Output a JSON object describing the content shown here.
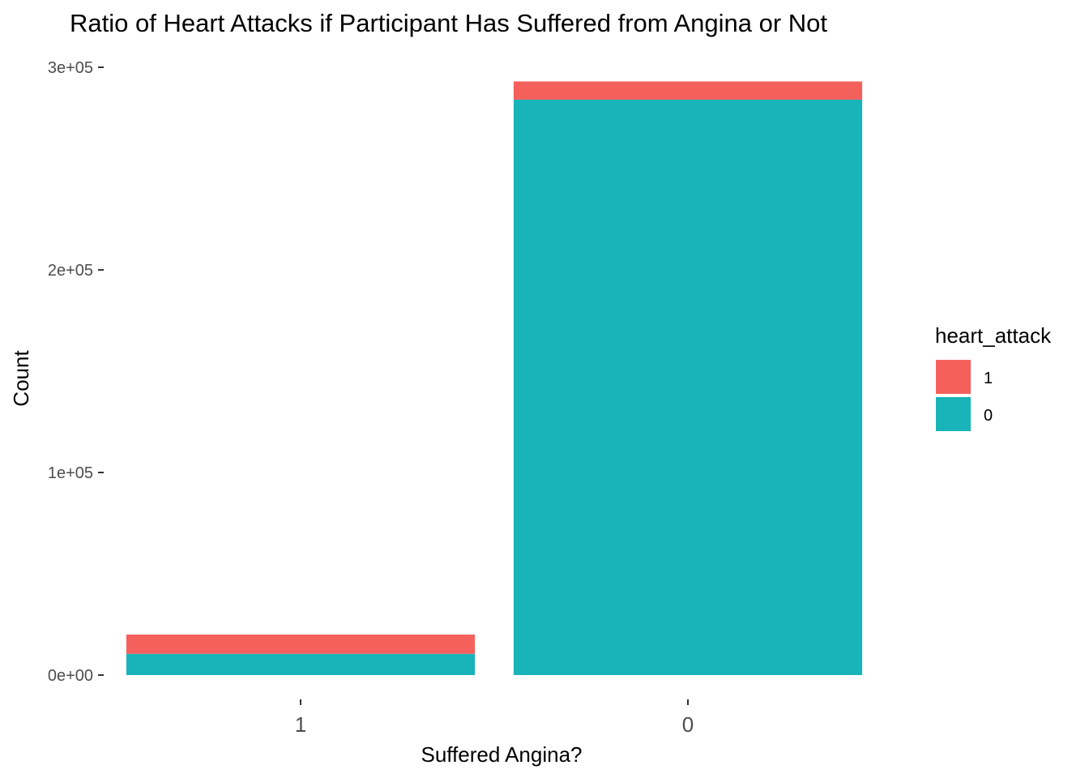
{
  "chart_data": {
    "type": "bar",
    "stacked": true,
    "title": "Ratio of Heart Attacks if Participant Has Suffered from Angina or Not",
    "xlabel": "Suffered Angina?",
    "ylabel": "Count",
    "categories": [
      "1",
      "0"
    ],
    "series": [
      {
        "name": "0",
        "color": "#19B4B9",
        "values": [
          10500,
          284000
        ]
      },
      {
        "name": "1",
        "color": "#F4615D",
        "values": [
          9500,
          9000
        ]
      }
    ],
    "ylim": [
      0,
      300000
    ],
    "y_ticks": [
      {
        "value": 0,
        "label": "0e+00"
      },
      {
        "value": 100000,
        "label": "1e+05"
      },
      {
        "value": 200000,
        "label": "2e+05"
      },
      {
        "value": 300000,
        "label": "3e+05"
      }
    ],
    "grid": false,
    "legend": {
      "title": "heart_attack",
      "position": "right",
      "items": [
        {
          "label": "1",
          "color": "#F4615D"
        },
        {
          "label": "0",
          "color": "#19B4B9"
        }
      ]
    }
  }
}
